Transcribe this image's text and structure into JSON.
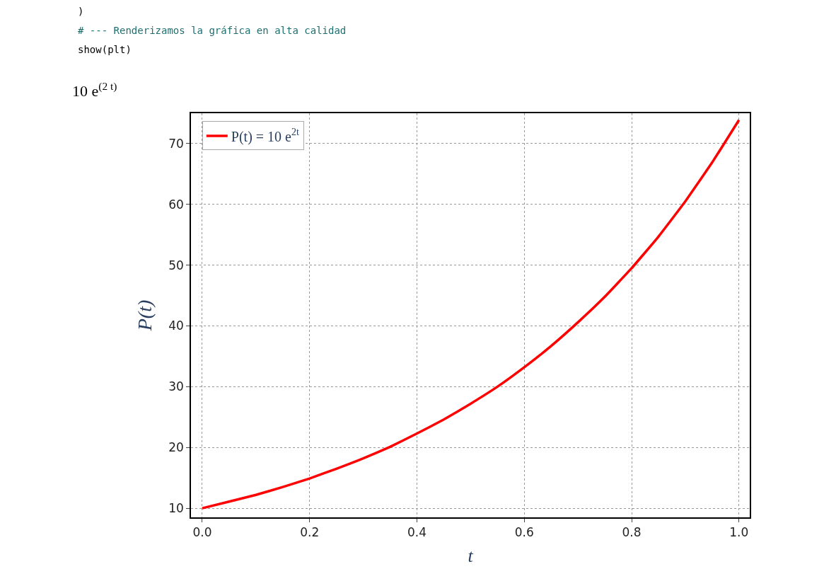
{
  "chart_data": {
    "type": "line",
    "xlabel": "t",
    "ylabel": "P(t)",
    "annotations": [
      ")",
      "# --- Renderizamos la gráfica en alta calidad",
      "show(plt)",
      "10 e$^{(2 t)}$"
    ],
    "x": [
      0,
      0.05,
      0.1,
      0.15,
      0.2,
      0.25,
      0.3,
      0.35,
      0.4,
      0.45,
      0.5,
      0.55,
      0.6,
      0.65,
      0.7,
      0.75,
      0.8,
      0.85,
      0.9,
      0.95,
      1.0
    ],
    "series": [
      {
        "name": "P(t) = 10 e$^{2t}$",
        "color": "#ff0000",
        "values": [
          10,
          11.1,
          12.2,
          13.5,
          14.9,
          16.5,
          18.2,
          20.1,
          22.3,
          24.6,
          27.2,
          30.0,
          33.2,
          36.7,
          40.6,
          44.8,
          49.5,
          54.7,
          60.5,
          66.9,
          73.9
        ]
      }
    ],
    "xlim": [
      -0.021,
      1.02
    ],
    "ylim": [
      8.5,
      75.0
    ],
    "xticks": [
      {
        "value": 0,
        "label": "0.0"
      },
      {
        "value": 0.2,
        "label": "0.2"
      },
      {
        "value": 0.4,
        "label": "0.4"
      },
      {
        "value": 0.6,
        "label": "0.6"
      },
      {
        "value": 0.8,
        "label": "0.8"
      },
      {
        "value": 1.0,
        "label": "1.0"
      }
    ],
    "yticks": [
      10,
      20,
      30,
      40,
      50,
      60,
      70
    ],
    "grid": true,
    "legend": "top left",
    "line_style": "solid",
    "marker": "none"
  }
}
